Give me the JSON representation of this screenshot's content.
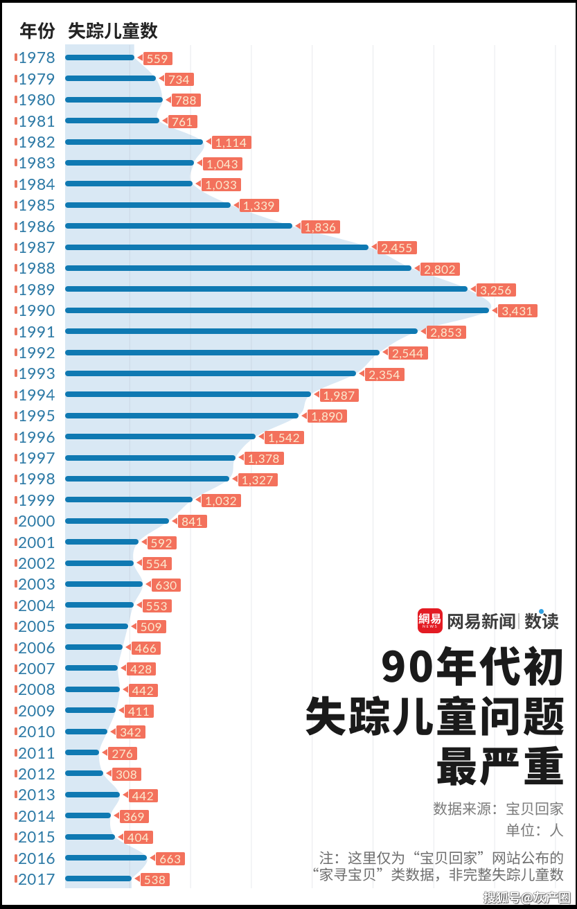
{
  "chart_data": {
    "type": "bar",
    "orientation": "horizontal",
    "title": "90年代初失踪儿童问题最严重",
    "xlabel": "失踪儿童数",
    "ylabel": "年份",
    "categories": [
      "1978",
      "1979",
      "1980",
      "1981",
      "1982",
      "1983",
      "1984",
      "1985",
      "1986",
      "1987",
      "1988",
      "1989",
      "1990",
      "1991",
      "1992",
      "1993",
      "1994",
      "1995",
      "1996",
      "1997",
      "1998",
      "1999",
      "2000",
      "2001",
      "2002",
      "2003",
      "2004",
      "2005",
      "2006",
      "2007",
      "2008",
      "2009",
      "2010",
      "2011",
      "2012",
      "2013",
      "2014",
      "2015",
      "2016",
      "2017"
    ],
    "values": [
      559,
      734,
      788,
      761,
      1114,
      1043,
      1033,
      1339,
      1836,
      2455,
      2802,
      3256,
      3431,
      2853,
      2544,
      2354,
      1987,
      1890,
      1542,
      1378,
      1327,
      1032,
      841,
      592,
      554,
      630,
      553,
      509,
      466,
      428,
      442,
      411,
      342,
      276,
      308,
      442,
      369,
      404,
      663,
      538
    ],
    "grid": true,
    "legend": null,
    "unit": "人",
    "bar_color": "#0f79b2",
    "area_color": "#d9e8f4",
    "label_color": "#f3715c"
  },
  "header": {
    "year_label": "年份",
    "count_label": "失踪儿童数"
  },
  "branding": {
    "logo_chars": "網易",
    "logo_sub": "NEWS",
    "app_name": "网易新闻",
    "column_name": "数读",
    "logo_red": "#e31b23"
  },
  "title": {
    "line1": "90年代初",
    "line2": "失踪儿童问题",
    "line3": "最严重"
  },
  "meta": {
    "source": "数据来源：宝贝回家",
    "unit": "单位：人",
    "note_line1": "注：这里仅为“宝贝回家”网站公布的",
    "note_line2": "“家寻宝贝”类数据，非完整失踪儿童数"
  },
  "watermark": "搜狐号@灰产圈",
  "colors": {
    "bar": "#0f79b2",
    "area": "#d9e8f4",
    "salmon": "#f3715c",
    "chip_text": "#fbe8cd",
    "year_text": "#2d7aa6",
    "grid": "#a8b0ba",
    "title_text": "#1a1a1a",
    "gray_text": "#7b7b7b",
    "note_text": "#6e6e6e"
  }
}
